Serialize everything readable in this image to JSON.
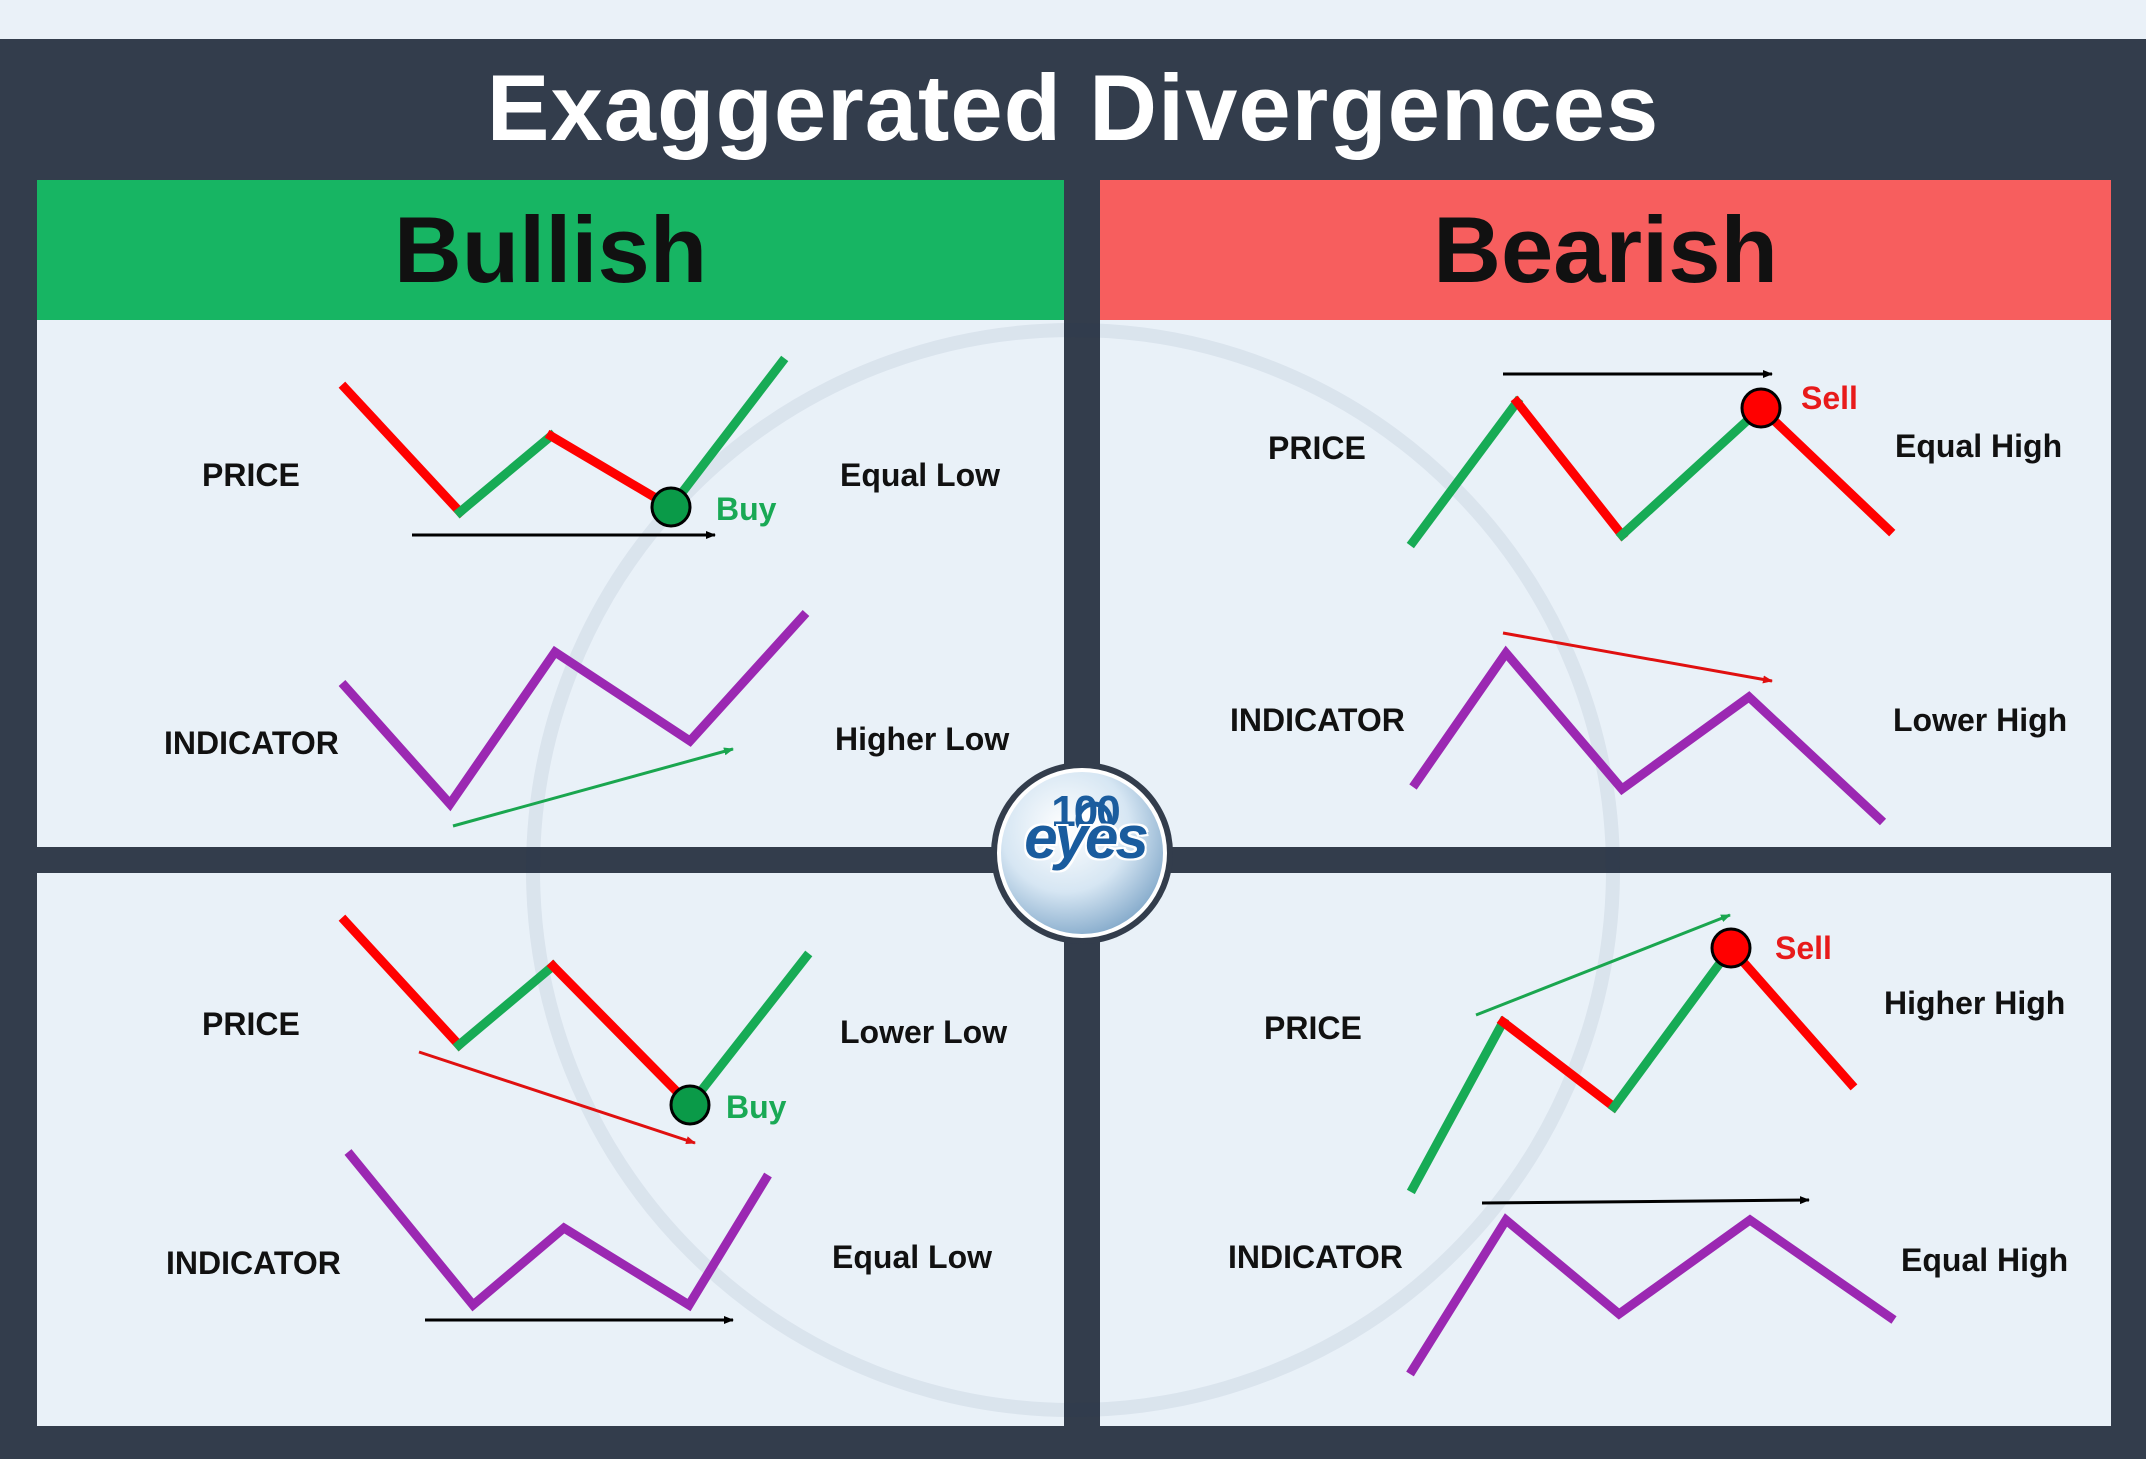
{
  "title": "Exaggerated Divergences",
  "headers": {
    "bullish": "Bullish",
    "bearish": "Bearish"
  },
  "panels": {
    "top_left": {
      "price_label": "PRICE",
      "indicator_label": "INDICATOR",
      "price_note": "Equal Low",
      "indicator_note": "Higher Low",
      "signal": "Buy"
    },
    "bottom_left": {
      "price_label": "PRICE",
      "indicator_label": "INDICATOR",
      "price_note": "Lower Low",
      "indicator_note": "Equal Low",
      "signal": "Buy"
    },
    "top_right": {
      "price_label": "PRICE",
      "indicator_label": "INDICATOR",
      "price_note": "Equal High",
      "indicator_note": "Lower High",
      "signal": "Sell"
    },
    "bottom_right": {
      "price_label": "PRICE",
      "indicator_label": "INDICATOR",
      "price_note": "Higher High",
      "indicator_note": "Equal High",
      "signal": "Sell"
    }
  },
  "logo": {
    "number": "100",
    "word": "eyes"
  },
  "colors": {
    "frame": "#333d4c",
    "bullish": "#17b563",
    "bearish": "#f75e5e",
    "up_segment": "#17ab55",
    "down_segment": "#ff0000",
    "indicator": "#9b28b2",
    "buy_marker": "#0a9a48",
    "sell_marker": "#ff0000"
  }
}
